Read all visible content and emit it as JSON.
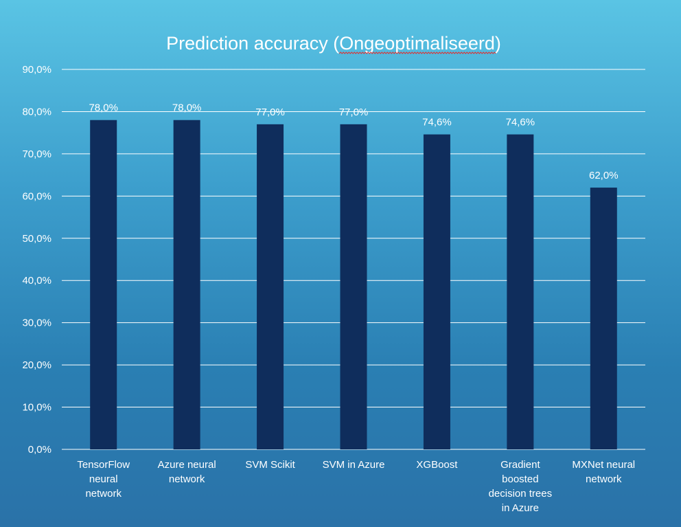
{
  "chart_data": {
    "type": "bar",
    "title": "Prediction accuracy (Ongeoptimaliseerd)",
    "title_parts": {
      "prefix": "Prediction accuracy (",
      "underlined": "Ongeoptimaliseerd",
      "suffix": ")"
    },
    "xlabel": "",
    "ylabel": "",
    "categories": [
      "TensorFlow neural network",
      "Azure neural network",
      "SVM Scikit",
      "SVM in Azure",
      "XGBoost",
      "Gradient boosted decision trees in Azure",
      "MXNet neural network"
    ],
    "category_lines": [
      [
        "TensorFlow",
        "neural",
        "network"
      ],
      [
        "Azure neural",
        "network"
      ],
      [
        "SVM Scikit"
      ],
      [
        "SVM in Azure"
      ],
      [
        "XGBoost"
      ],
      [
        "Gradient",
        "boosted",
        "decision trees",
        "in Azure"
      ],
      [
        "MXNet neural",
        "network"
      ]
    ],
    "values": [
      78.0,
      78.0,
      77.0,
      77.0,
      74.6,
      74.6,
      62.0
    ],
    "data_labels": [
      "78,0%",
      "78,0%",
      "77,0%",
      "77,0%",
      "74,6%",
      "74,6%",
      "62,0%"
    ],
    "ylim": [
      0,
      90
    ],
    "yticks": [
      0,
      10,
      20,
      30,
      40,
      50,
      60,
      70,
      80,
      90
    ],
    "ytick_labels": [
      "0,0%",
      "10,0%",
      "20,0%",
      "30,0%",
      "40,0%",
      "50,0%",
      "60,0%",
      "70,0%",
      "80,0%",
      "90,0%"
    ],
    "grid": true,
    "legend": "none",
    "bar_color": "#0f2d5c",
    "title_underline_color": "#e03030"
  }
}
